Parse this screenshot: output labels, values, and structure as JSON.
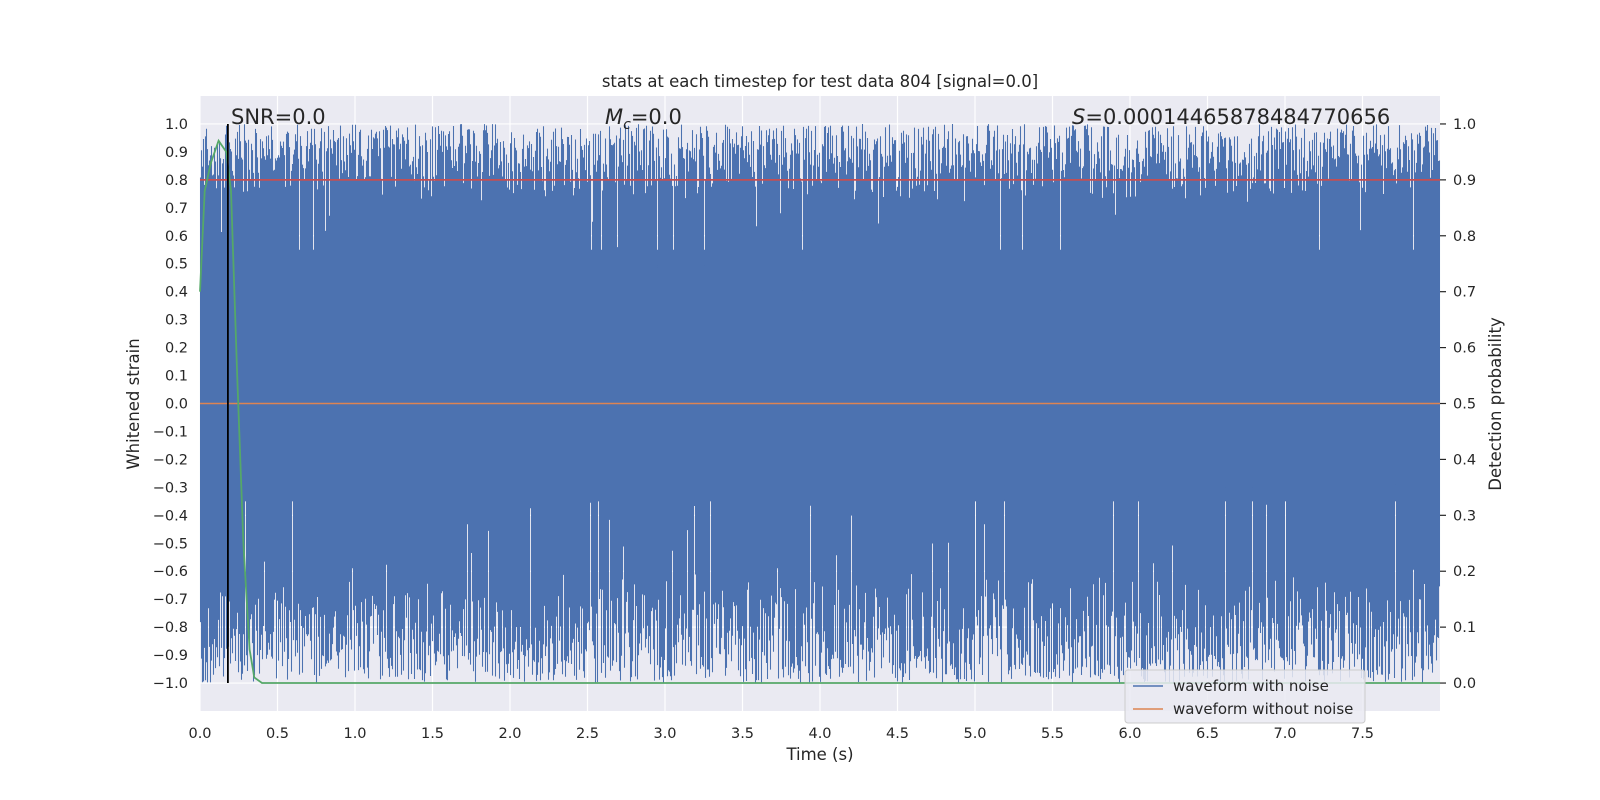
{
  "chart_data": {
    "type": "line",
    "title": "stats at each timestep for test data 804 [signal=0.0]",
    "xlabel": "Time (s)",
    "ylabel_left": "Whitened strain",
    "ylabel_right": "Detection probability",
    "xlim": [
      0.0,
      8.0
    ],
    "ylim_left": [
      -1.1,
      1.1
    ],
    "ylim_right": [
      -0.05,
      1.05
    ],
    "xticks": [
      "0.0",
      "0.5",
      "1.0",
      "1.5",
      "2.0",
      "2.5",
      "3.0",
      "3.5",
      "4.0",
      "4.5",
      "5.0",
      "5.5",
      "6.0",
      "6.5",
      "7.0",
      "7.5"
    ],
    "yticks_left": [
      "1.0",
      "0.9",
      "0.8",
      "0.7",
      "0.6",
      "0.5",
      "0.4",
      "0.3",
      "0.2",
      "0.1",
      "0.0",
      "−0.1",
      "−0.2",
      "−0.3",
      "−0.4",
      "−0.5",
      "−0.6",
      "−0.7",
      "−0.8",
      "−0.9",
      "−1.0"
    ],
    "yticks_right": [
      "1.0",
      "0.9",
      "0.8",
      "0.7",
      "0.6",
      "0.5",
      "0.4",
      "0.3",
      "0.2",
      "0.1",
      "0.0"
    ],
    "grid": true,
    "annotations": {
      "snr": "SNR=0.0",
      "mc_symbol": "M",
      "mc_sub": "c",
      "mc_value": "=0.0",
      "s_symbol": "S",
      "s_value": "=0.00014465878484770656"
    },
    "legend": {
      "placement": "lower-right",
      "entries": [
        {
          "label": "waveform with noise",
          "color": "#4c72b0"
        },
        {
          "label": "waveform without noise",
          "color": "#dd8452"
        }
      ]
    },
    "series": [
      {
        "name": "waveform with noise",
        "axis": "left",
        "color": "#4c72b0",
        "description": "dense noise filling approx -1.0 to 1.0"
      },
      {
        "name": "waveform without noise",
        "axis": "left",
        "color": "#dd8452",
        "values": "0.0 constant"
      },
      {
        "axis": "right",
        "color": "#55a868",
        "points": [
          [
            0.0,
            0.7
          ],
          [
            0.03,
            0.88
          ],
          [
            0.07,
            0.93
          ],
          [
            0.12,
            0.97
          ],
          [
            0.17,
            0.95
          ],
          [
            0.2,
            0.88
          ],
          [
            0.24,
            0.55
          ],
          [
            0.28,
            0.25
          ],
          [
            0.32,
            0.06
          ],
          [
            0.35,
            0.01
          ],
          [
            0.4,
            0.0
          ],
          [
            8.0,
            0.0
          ]
        ]
      },
      {
        "axis": "right",
        "color": "#c44e52",
        "values": "0.9 constant threshold"
      }
    ],
    "vline_x": 0.18,
    "colors": {
      "plot_bg": "#eaeaf2",
      "grid": "#ffffff",
      "noise": "#4c72b0",
      "clean": "#dd8452",
      "prob": "#55a868",
      "threshold": "#c44e52",
      "vline": "#000000"
    }
  }
}
